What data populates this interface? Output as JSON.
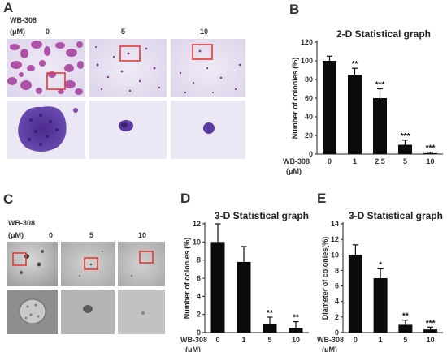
{
  "figure": {
    "panels": {
      "A": {
        "letter": "A",
        "drug_label": "WB-308",
        "unit_label": "(μM)",
        "doses": [
          "0",
          "5",
          "10"
        ],
        "image_rows": [
          "overview",
          "zoom"
        ],
        "stain": "crystal violet (purple on lavender)"
      },
      "B": {
        "letter": "B"
      },
      "C": {
        "letter": "C",
        "drug_label": "WB-308",
        "unit_label": "(μM)",
        "doses": [
          "0",
          "5",
          "10"
        ],
        "image_rows": [
          "overview",
          "zoom"
        ],
        "stain": "grayscale phase contrast"
      },
      "D": {
        "letter": "D"
      },
      "E": {
        "letter": "E"
      }
    },
    "highlight_color": "#e53935",
    "bar_color": "#0b0b0b"
  },
  "chart_data": [
    {
      "id": "B",
      "type": "bar",
      "title": "2-D Statistical graph",
      "ylabel": "Number of colonies (%)",
      "x_axis_name": "WB-308",
      "x_axis_unit": "(μM)",
      "categories": [
        "0",
        "1",
        "2.5",
        "5",
        "10"
      ],
      "values": [
        100,
        85,
        60,
        10,
        1
      ],
      "errors": [
        5,
        7,
        10,
        5,
        1
      ],
      "significance": [
        "",
        "**",
        "***",
        "***",
        "***"
      ],
      "ylim": [
        0,
        120
      ],
      "yticks": [
        0,
        20,
        40,
        60,
        80,
        100,
        120
      ]
    },
    {
      "id": "D",
      "type": "bar",
      "title": "3-D Statistical graph",
      "ylabel": "Number of colonies (%)",
      "x_axis_name": "WB-308",
      "x_axis_unit": "(μM)",
      "categories": [
        "0",
        "1",
        "5",
        "10"
      ],
      "values": [
        10,
        7.8,
        0.9,
        0.5
      ],
      "errors": [
        2.0,
        1.7,
        0.8,
        0.7
      ],
      "significance": [
        "",
        "",
        "**",
        "**"
      ],
      "ylim": [
        0,
        12
      ],
      "yticks": [
        0,
        2,
        4,
        6,
        8,
        10,
        12
      ]
    },
    {
      "id": "E",
      "type": "bar",
      "title": "3-D Statistical graph",
      "ylabel": "Diameter of colonies(%)",
      "x_axis_name": "WB-308",
      "x_axis_unit": "(μM)",
      "categories": [
        "0",
        "1",
        "5",
        "10"
      ],
      "values": [
        10,
        7,
        1,
        0.4
      ],
      "errors": [
        1.3,
        1.2,
        0.6,
        0.3
      ],
      "significance": [
        "",
        "*",
        "**",
        "***"
      ],
      "ylim": [
        0,
        14
      ],
      "yticks": [
        0,
        2,
        4,
        6,
        8,
        10,
        12,
        14
      ]
    }
  ]
}
